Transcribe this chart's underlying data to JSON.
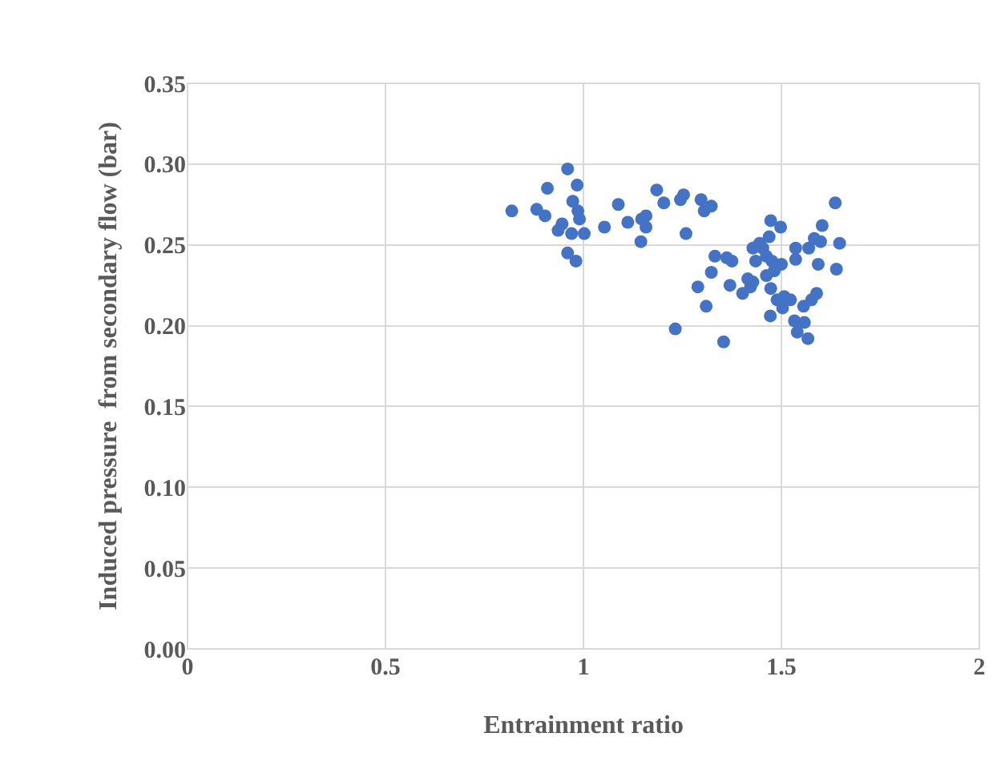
{
  "chart_data": {
    "type": "scatter",
    "xlabel": "Entrainment ratio",
    "ylabel": "Induced pressure  from secondary flow (bar)",
    "x": [
      0.819,
      0.882,
      0.903,
      0.909,
      0.96,
      0.984,
      0.973,
      0.986,
      0.99,
      0.946,
      0.936,
      0.97,
      1.002,
      0.96,
      0.981,
      1.053,
      1.088,
      1.112,
      1.147,
      1.158,
      1.158,
      1.145,
      1.185,
      1.203,
      1.245,
      1.253,
      1.259,
      1.297,
      1.305,
      1.323,
      1.232,
      1.354,
      1.31,
      1.289,
      1.323,
      1.332,
      1.37,
      1.362,
      1.375,
      1.402,
      1.422,
      1.428,
      1.435,
      1.428,
      1.445,
      1.453,
      1.462,
      1.469,
      1.473,
      1.498,
      1.476,
      1.482,
      1.462,
      1.5,
      1.473,
      1.489,
      1.507,
      1.503,
      1.523,
      1.472,
      1.536,
      1.536,
      1.569,
      1.583,
      1.599,
      1.603,
      1.636,
      1.647,
      1.593,
      1.639,
      1.556,
      1.576,
      1.589,
      1.533,
      1.558,
      1.54,
      1.567,
      1.415
    ],
    "values": [
      0.271,
      0.272,
      0.268,
      0.285,
      0.297,
      0.287,
      0.277,
      0.271,
      0.266,
      0.263,
      0.259,
      0.257,
      0.257,
      0.245,
      0.24,
      0.261,
      0.275,
      0.264,
      0.266,
      0.261,
      0.268,
      0.252,
      0.284,
      0.276,
      0.278,
      0.281,
      0.257,
      0.278,
      0.271,
      0.274,
      0.198,
      0.19,
      0.212,
      0.224,
      0.233,
      0.243,
      0.225,
      0.242,
      0.24,
      0.22,
      0.224,
      0.227,
      0.24,
      0.248,
      0.251,
      0.248,
      0.243,
      0.255,
      0.265,
      0.261,
      0.24,
      0.234,
      0.231,
      0.238,
      0.223,
      0.216,
      0.218,
      0.211,
      0.216,
      0.206,
      0.248,
      0.241,
      0.248,
      0.254,
      0.252,
      0.262,
      0.276,
      0.251,
      0.238,
      0.235,
      0.212,
      0.216,
      0.22,
      0.203,
      0.202,
      0.196,
      0.192,
      0.229
    ],
    "color": "#4472c4",
    "marker": "circle",
    "xlim": [
      0,
      2
    ],
    "xticks": [
      0,
      0.5,
      1,
      1.5,
      2
    ],
    "ylim": [
      0,
      0.35
    ],
    "yticks": [
      {
        "value": 0,
        "label": "0.00"
      },
      0.05,
      {
        "value": 0.1,
        "label": "0.10"
      },
      0.15,
      {
        "value": 0.2,
        "label": "0.20"
      },
      0.25,
      {
        "value": 0.3,
        "label": "0.30"
      },
      0.35
    ],
    "grid": true
  }
}
